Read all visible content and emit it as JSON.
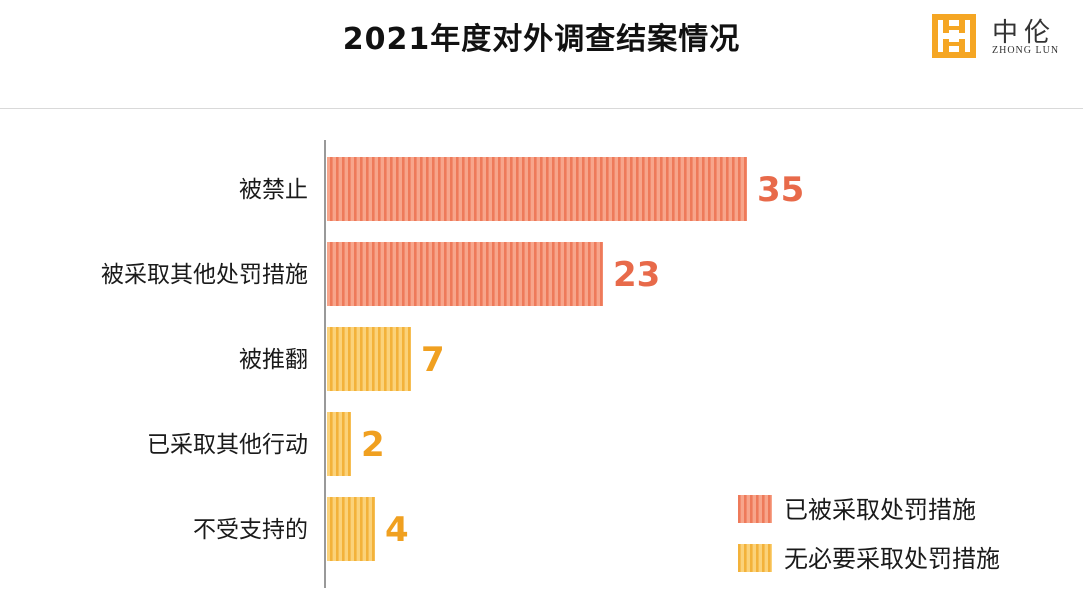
{
  "page": {
    "title": "2021年度对外调查结案情况"
  },
  "logo": {
    "name_cn": "中伦",
    "name_en": "ZHONG LUN",
    "icon": "zhonglun-logo-icon"
  },
  "colors": {
    "penalty": "#f28e72",
    "penalty_dark": "#e86a4a",
    "no_penalty": "#f7c04e",
    "no_penalty_dark": "#f0a020",
    "axis": "#999999"
  },
  "chart_data": {
    "type": "bar",
    "orientation": "horizontal",
    "title": "2021年度对外调查结案情况",
    "categories": [
      "被禁止",
      "被采取其他处罚措施",
      "被推翻",
      "已采取其他行动",
      "不受支持的"
    ],
    "values": [
      35,
      23,
      7,
      2,
      4
    ],
    "series_membership": [
      "已被采取处罚措施",
      "已被采取处罚措施",
      "无必要采取处罚措施",
      "无必要采取处罚措施",
      "无必要采取处罚措施"
    ],
    "legend": [
      {
        "name": "已被采取处罚措施",
        "color": "#f28e72"
      },
      {
        "name": "无必要采取处罚措施",
        "color": "#f7c04e"
      }
    ],
    "legend_position": "bottom-right",
    "xlim": [
      0,
      35
    ],
    "grid": false,
    "data_labels": true
  }
}
